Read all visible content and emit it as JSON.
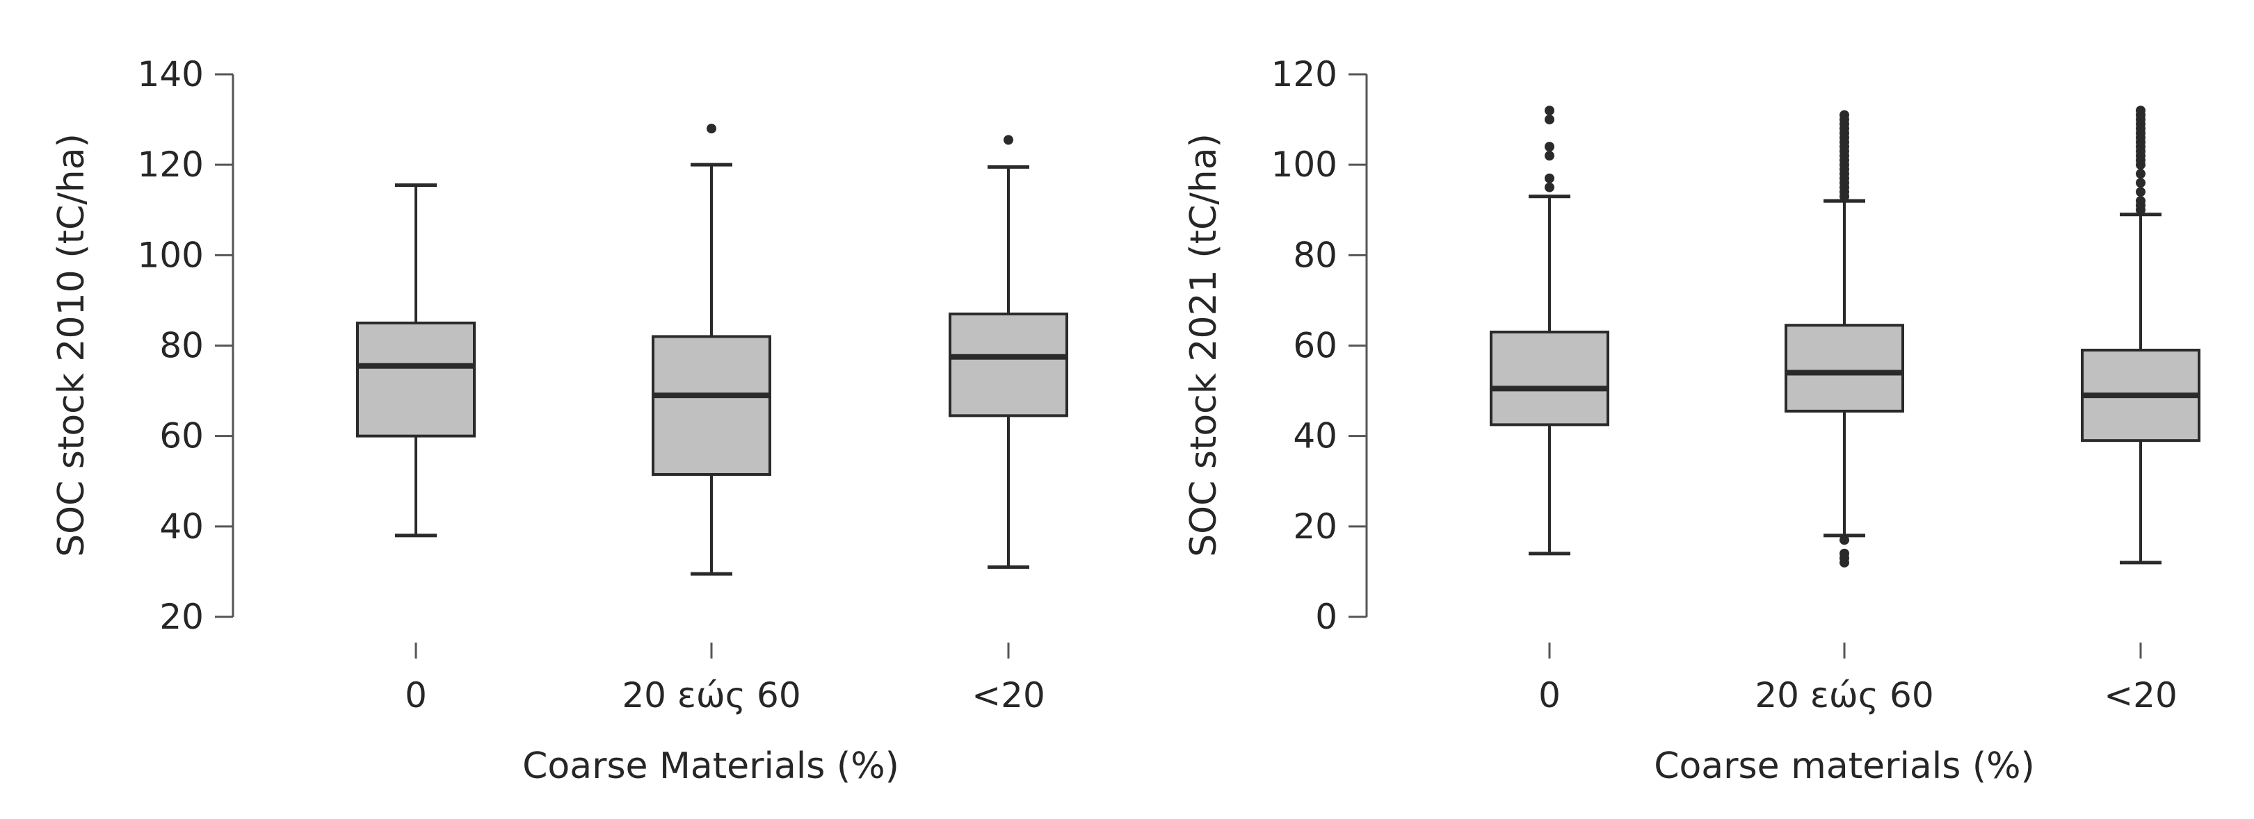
{
  "chart_data": [
    {
      "type": "boxplot",
      "xlabel": "Coarse Materials (%)",
      "ylabel": "SOC stock 2010 (tC/ha)",
      "ylim": [
        20,
        140
      ],
      "yticks": [
        20,
        40,
        60,
        80,
        100,
        120,
        140
      ],
      "categories": [
        "0",
        "20 εώς 60",
        "<20"
      ],
      "boxes": [
        {
          "whisker_low": 38,
          "q1": 60,
          "median": 75.5,
          "q3": 85,
          "whisker_high": 115.5,
          "outliers": []
        },
        {
          "whisker_low": 29.5,
          "q1": 51.5,
          "median": 69,
          "q3": 82,
          "whisker_high": 120,
          "outliers": [
            128
          ]
        },
        {
          "whisker_low": 31,
          "q1": 64.5,
          "median": 77.5,
          "q3": 87,
          "whisker_high": 119.5,
          "outliers": [
            125.5
          ]
        }
      ],
      "grid": false,
      "box_fill": "#c0c0c0",
      "line_color": "#2a2a2a"
    },
    {
      "type": "boxplot",
      "xlabel": "Coarse materials (%)",
      "ylabel": "SOC stock 2021 (tC/ha)",
      "ylim": [
        0,
        120
      ],
      "yticks": [
        0,
        20,
        40,
        60,
        80,
        100,
        120
      ],
      "categories": [
        "0",
        "20 εώς 60",
        "<20"
      ],
      "boxes": [
        {
          "whisker_low": 14,
          "q1": 42.5,
          "median": 50.5,
          "q3": 63,
          "whisker_high": 93,
          "outliers": [
            95,
            97,
            102,
            104,
            110,
            112
          ]
        },
        {
          "whisker_low": 18,
          "q1": 45.5,
          "median": 54,
          "q3": 64.5,
          "whisker_high": 92,
          "outliers": [
            12,
            13,
            14,
            17,
            93,
            94,
            95,
            96,
            97,
            98,
            99,
            100,
            101,
            102,
            103,
            104,
            105,
            106,
            107,
            108,
            109,
            110,
            111
          ]
        },
        {
          "whisker_low": 12,
          "q1": 39,
          "median": 49,
          "q3": 59,
          "whisker_high": 89,
          "outliers": [
            90,
            91,
            92,
            94,
            96,
            98,
            100,
            101,
            102,
            103,
            104,
            105,
            106,
            107,
            108,
            109,
            110,
            111,
            112
          ]
        }
      ],
      "grid": false,
      "box_fill": "#c0c0c0",
      "line_color": "#2a2a2a"
    }
  ]
}
